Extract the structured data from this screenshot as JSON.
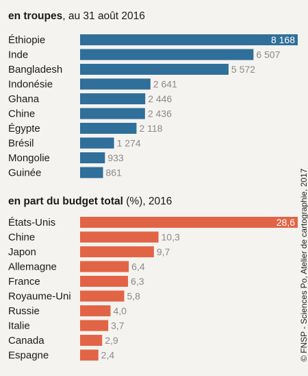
{
  "credit": "© FNSP - Sciences Po, Atelier de cartographie, 2017",
  "chart_data": [
    {
      "type": "bar",
      "title_bold": "en troupes",
      "title_rest": ", au 31 août 2016",
      "color": "#2f6f9a",
      "max": 8168,
      "categories": [
        "Éthiopie",
        "Inde",
        "Bangladesh",
        "Indonésie",
        "Ghana",
        "Chine",
        "Égypte",
        "Brésil",
        "Mongolie",
        "Guinée"
      ],
      "values": [
        8168,
        6507,
        5572,
        2641,
        2446,
        2436,
        2118,
        1274,
        933,
        861
      ],
      "labels": [
        "8 168",
        "6 507",
        "5 572",
        "2 641",
        "2 446",
        "2 436",
        "2 118",
        "1 274",
        "933",
        "861"
      ]
    },
    {
      "type": "bar",
      "title_bold": "en part du budget total",
      "title_rest": " (%), 2016",
      "color": "#e26446",
      "max": 28.6,
      "categories": [
        "États-Unis",
        "Chine",
        "Japon",
        "Allemagne",
        "France",
        "Royaume-Uni",
        "Russie",
        "Italie",
        "Canada",
        "Espagne"
      ],
      "values": [
        28.6,
        10.3,
        9.7,
        6.4,
        6.3,
        5.8,
        4.0,
        3.7,
        2.9,
        2.4
      ],
      "labels": [
        "28,6",
        "10,3",
        "9,7",
        "6,4",
        "6,3",
        "5,8",
        "4,0",
        "3,7",
        "2,9",
        "2,4"
      ]
    }
  ]
}
